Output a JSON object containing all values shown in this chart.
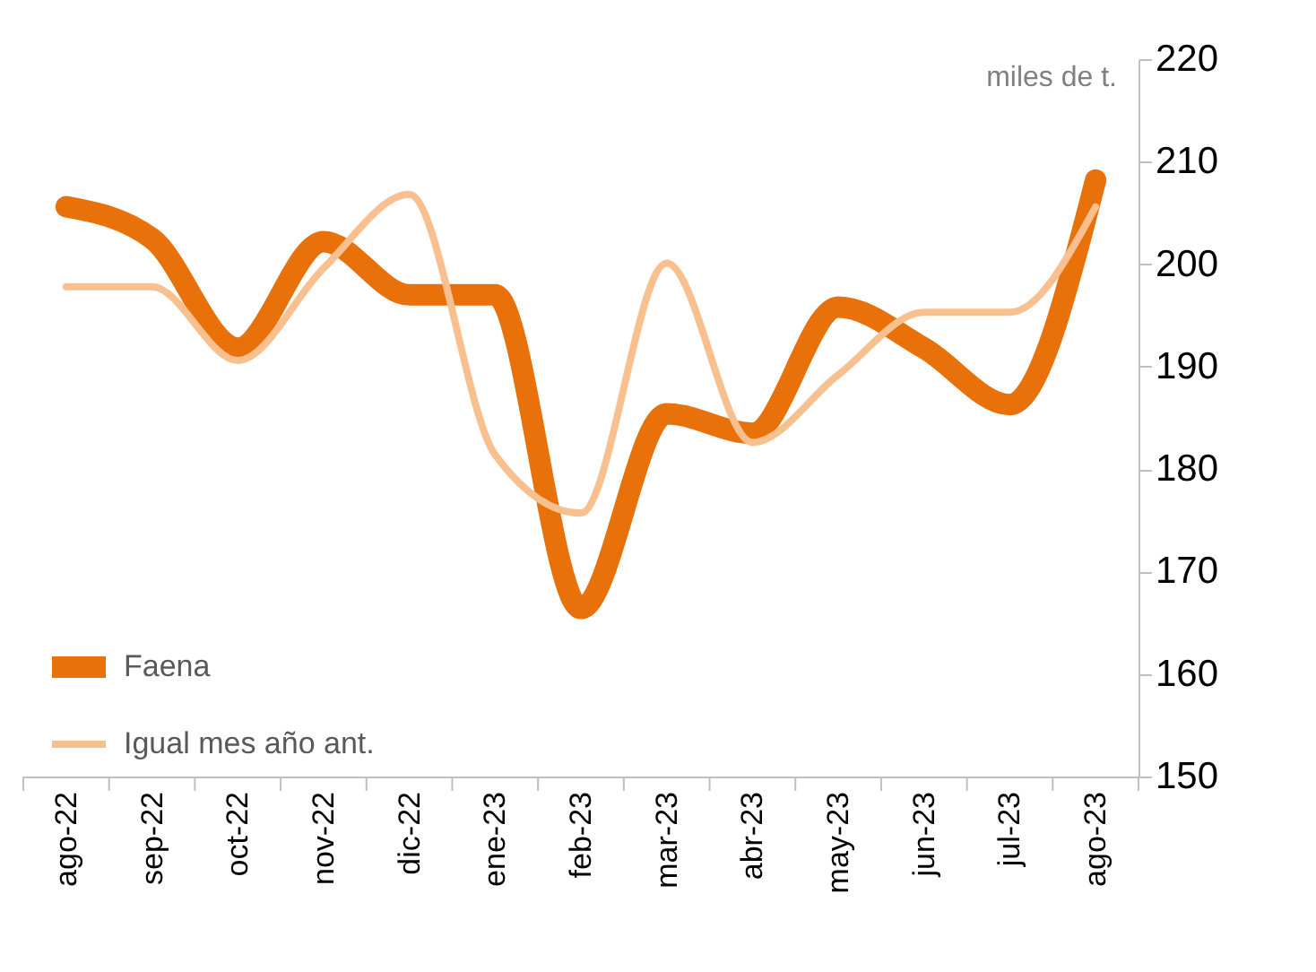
{
  "chart_data": {
    "type": "line",
    "categories": [
      "ago-22",
      "sep-22",
      "oct-22",
      "nov-22",
      "dic-22",
      "ene-23",
      "feb-23",
      "mar-23",
      "abr-23",
      "may-23",
      "jun-23",
      "jul-23",
      "ago-23"
    ],
    "series": [
      {
        "name": "Faena",
        "color": "#e8710a",
        "values": [
          205.6,
          202.5,
          191.8,
          202.2,
          197,
          197,
          166.4,
          185.4,
          183.5,
          195.8,
          191.8,
          186.3,
          208.2
        ]
      },
      {
        "name": "Igual mes año ant.",
        "color": "#f9c08f",
        "values": [
          197.8,
          197.8,
          190.6,
          199.6,
          206.8,
          181.4,
          175.7,
          200.1,
          182.6,
          189.2,
          195.3,
          195.3,
          205.6
        ]
      }
    ],
    "ylim": [
      150,
      220
    ],
    "yticks": [
      150,
      160,
      170,
      180,
      190,
      200,
      210,
      220
    ],
    "grid": false,
    "legend": "bottom left",
    "marker": "none",
    "line_style": "solid",
    "annotations": [
      "miles de t."
    ]
  }
}
